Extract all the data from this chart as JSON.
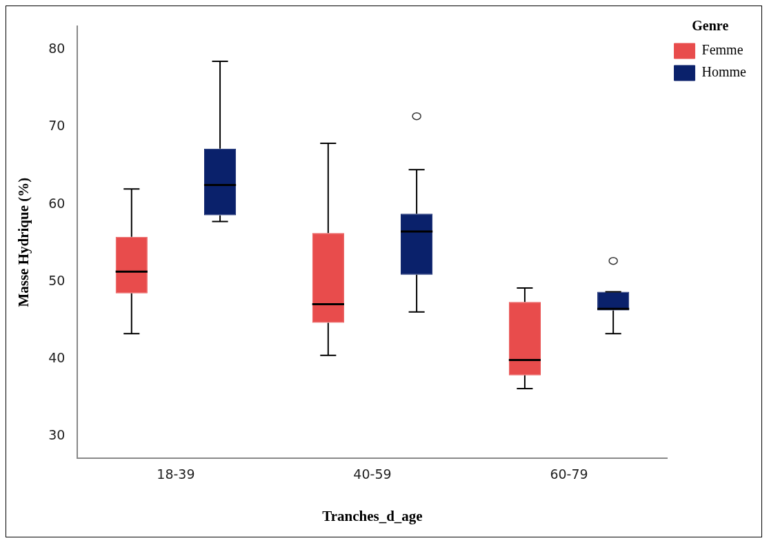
{
  "chart_data": {
    "type": "box",
    "xlabel": "Tranches_d_age",
    "ylabel": "Masse Hydrique (%)",
    "legend_title": "Genre",
    "legend": "top right",
    "grid": false,
    "categories": [
      "18-39",
      "40-59",
      "60-79"
    ],
    "ylim": [
      27.2,
      83
    ],
    "yticks": [
      30,
      40,
      50,
      60,
      70,
      80
    ],
    "series": [
      {
        "name": "Femme",
        "color": "#e84c4c",
        "boxes": [
          {
            "low": 43.3,
            "q1": 48.5,
            "median": 51.3,
            "q3": 55.8,
            "high": 62.0
          },
          {
            "low": 40.5,
            "q1": 44.7,
            "median": 47.1,
            "q3": 56.3,
            "high": 67.9
          },
          {
            "low": 36.2,
            "q1": 37.9,
            "median": 39.9,
            "q3": 47.4,
            "high": 49.2
          }
        ]
      },
      {
        "name": "Homme",
        "color": "#0a216b",
        "boxes": [
          {
            "low": 57.8,
            "q1": 58.6,
            "median": 62.5,
            "q3": 67.2,
            "high": 78.5
          },
          {
            "low": 46.1,
            "q1": 50.9,
            "median": 56.5,
            "q3": 58.8,
            "high": 64.5,
            "outliers": [
              71.4
            ]
          },
          {
            "low": 43.3,
            "q1": 46.3,
            "median": 46.5,
            "q3": 48.7,
            "high": 48.7,
            "outliers": [
              52.7
            ]
          }
        ]
      }
    ]
  }
}
